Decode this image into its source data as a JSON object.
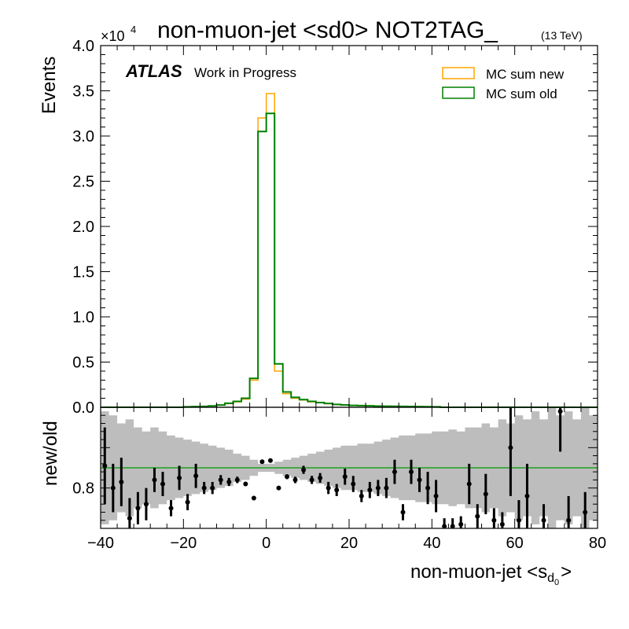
{
  "chart_data": [
    {
      "type": "line",
      "panel": "main",
      "title": "non-muon-jet <sd0> NOT2TAG_",
      "title_sub": "(13 TeV)",
      "experiment": "ATLAS",
      "experiment_note": "Work in Progress",
      "ylabel": "Events",
      "y_multiplier": "×10",
      "y_multiplier_exp": "4",
      "xlim": [
        -40,
        80
      ],
      "ylim": [
        0,
        40000
      ],
      "x_ticks": [
        "−40",
        "−20",
        "0",
        "20",
        "40",
        "60",
        "80"
      ],
      "y_ticks": [
        "0.0",
        "0.5",
        "1.0",
        "1.5",
        "2.0",
        "2.5",
        "3.0",
        "3.5",
        "4.0"
      ],
      "legend_position": "top-right",
      "bin_edges": [
        -20,
        -18,
        -16,
        -14,
        -12,
        -10,
        -8,
        -6,
        -4,
        -2,
        0,
        2,
        4,
        6,
        8,
        10,
        12,
        14,
        16,
        18,
        20,
        22,
        24,
        26,
        28,
        30,
        32,
        34,
        36,
        38,
        40,
        42
      ],
      "series": [
        {
          "name": "MC sum new",
          "color": "#ffa500",
          "values": [
            50,
            80,
            100,
            150,
            250,
            400,
            600,
            900,
            3000,
            32000,
            34700,
            4000,
            1500,
            1000,
            800,
            600,
            500,
            400,
            300,
            250,
            200,
            180,
            150,
            130,
            110,
            100,
            90,
            80,
            70,
            60,
            50
          ]
        },
        {
          "name": "MC sum old",
          "color": "#008000",
          "values": [
            50,
            80,
            100,
            150,
            250,
            450,
            650,
            1000,
            3200,
            30500,
            32500,
            4800,
            1700,
            1100,
            850,
            650,
            520,
            420,
            320,
            260,
            210,
            190,
            160,
            135,
            115,
            105,
            95,
            85,
            75,
            62,
            52
          ]
        }
      ]
    },
    {
      "type": "scatter",
      "panel": "ratio",
      "ylabel": "new/old",
      "xlabel": "non-muon-jet <s",
      "xlabel_sub": "d",
      "xlabel_subsub": "0",
      "xlabel_end": ">",
      "xlim": [
        -40,
        80
      ],
      "ylim": [
        0.7,
        1.0
      ],
      "y_ticks": [
        "0.8"
      ],
      "reference_line": 0.85,
      "reference_color": "#009a00",
      "band_color": "#bdbdbd",
      "band": {
        "x_edges": [
          -40,
          -38,
          -36,
          -34,
          -32,
          -30,
          -28,
          -26,
          -24,
          -22,
          -20,
          -18,
          -16,
          -14,
          -12,
          -10,
          -8,
          -6,
          -4,
          -2,
          0,
          2,
          4,
          6,
          8,
          10,
          12,
          14,
          16,
          18,
          20,
          22,
          24,
          26,
          28,
          30,
          32,
          34,
          36,
          38,
          40,
          42,
          44,
          46,
          48,
          50,
          52,
          54,
          56,
          58,
          60,
          62,
          64,
          66,
          68,
          70,
          72,
          74,
          76,
          78,
          80
        ],
        "halfwidth": [
          0.14,
          0.13,
          0.11,
          0.12,
          0.1,
          0.09,
          0.1,
          0.09,
          0.08,
          0.075,
          0.07,
          0.065,
          0.06,
          0.055,
          0.05,
          0.045,
          0.035,
          0.03,
          0.02,
          0.01,
          0.01,
          0.015,
          0.02,
          0.025,
          0.03,
          0.035,
          0.04,
          0.045,
          0.05,
          0.055,
          0.055,
          0.06,
          0.06,
          0.065,
          0.07,
          0.075,
          0.08,
          0.08,
          0.085,
          0.085,
          0.09,
          0.09,
          0.095,
          0.09,
          0.1,
          0.1,
          0.11,
          0.1,
          0.12,
          0.11,
          0.13,
          0.12,
          0.14,
          0.12,
          0.15,
          0.13,
          0.14,
          0.12,
          0.15,
          0.13
        ]
      },
      "points": [
        {
          "x": -39,
          "y": 0.855,
          "err": 0.095
        },
        {
          "x": -37,
          "y": 0.8,
          "err": 0.06
        },
        {
          "x": -35,
          "y": 0.815,
          "err": 0.06
        },
        {
          "x": -33,
          "y": 0.725,
          "err": 0.05
        },
        {
          "x": -31,
          "y": 0.75,
          "err": 0.04
        },
        {
          "x": -29,
          "y": 0.76,
          "err": 0.04
        },
        {
          "x": -27,
          "y": 0.82,
          "err": 0.03
        },
        {
          "x": -25,
          "y": 0.81,
          "err": 0.03
        },
        {
          "x": -23,
          "y": 0.75,
          "err": 0.02
        },
        {
          "x": -21,
          "y": 0.825,
          "err": 0.03
        },
        {
          "x": -19,
          "y": 0.765,
          "err": 0.02
        },
        {
          "x": -17,
          "y": 0.83,
          "err": 0.03
        },
        {
          "x": -15,
          "y": 0.8,
          "err": 0.015
        },
        {
          "x": -13,
          "y": 0.8,
          "err": 0.015
        },
        {
          "x": -11,
          "y": 0.82,
          "err": 0.012
        },
        {
          "x": -9,
          "y": 0.815,
          "err": 0.01
        },
        {
          "x": -7,
          "y": 0.82,
          "err": 0.008
        },
        {
          "x": -5,
          "y": 0.81,
          "err": 0.005
        },
        {
          "x": -3,
          "y": 0.775,
          "err": 0.005
        },
        {
          "x": -1,
          "y": 0.865,
          "err": 0.002
        },
        {
          "x": 1,
          "y": 0.868,
          "err": 0.002
        },
        {
          "x": 3,
          "y": 0.8,
          "err": 0.004
        },
        {
          "x": 5,
          "y": 0.828,
          "err": 0.006
        },
        {
          "x": 7,
          "y": 0.82,
          "err": 0.008
        },
        {
          "x": 9,
          "y": 0.845,
          "err": 0.01
        },
        {
          "x": 11,
          "y": 0.82,
          "err": 0.01
        },
        {
          "x": 13,
          "y": 0.825,
          "err": 0.012
        },
        {
          "x": 15,
          "y": 0.8,
          "err": 0.015
        },
        {
          "x": 17,
          "y": 0.795,
          "err": 0.015
        },
        {
          "x": 19,
          "y": 0.828,
          "err": 0.02
        },
        {
          "x": 21,
          "y": 0.81,
          "err": 0.02
        },
        {
          "x": 23,
          "y": 0.78,
          "err": 0.015
        },
        {
          "x": 25,
          "y": 0.795,
          "err": 0.02
        },
        {
          "x": 27,
          "y": 0.8,
          "err": 0.02
        },
        {
          "x": 29,
          "y": 0.8,
          "err": 0.025
        },
        {
          "x": 31,
          "y": 0.84,
          "err": 0.03
        },
        {
          "x": 33,
          "y": 0.74,
          "err": 0.02
        },
        {
          "x": 35,
          "y": 0.84,
          "err": 0.03
        },
        {
          "x": 37,
          "y": 0.82,
          "err": 0.03
        },
        {
          "x": 39,
          "y": 0.8,
          "err": 0.04
        },
        {
          "x": 41,
          "y": 0.78,
          "err": 0.04
        },
        {
          "x": 43,
          "y": 0.705,
          "err": 0.02
        },
        {
          "x": 45,
          "y": 0.705,
          "err": 0.02
        },
        {
          "x": 47,
          "y": 0.71,
          "err": 0.02
        },
        {
          "x": 49,
          "y": 0.81,
          "err": 0.05
        },
        {
          "x": 51,
          "y": 0.73,
          "err": 0.03
        },
        {
          "x": 53,
          "y": 0.785,
          "err": 0.05
        },
        {
          "x": 55,
          "y": 0.72,
          "err": 0.03
        },
        {
          "x": 57,
          "y": 0.71,
          "err": 0.03
        },
        {
          "x": 59,
          "y": 0.9,
          "err": 0.12
        },
        {
          "x": 61,
          "y": 0.72,
          "err": 0.05
        },
        {
          "x": 63,
          "y": 0.78,
          "err": 0.08
        },
        {
          "x": 67,
          "y": 0.72,
          "err": 0.04
        },
        {
          "x": 71,
          "y": 0.99,
          "err": 0.1
        },
        {
          "x": 73,
          "y": 0.72,
          "err": 0.06
        },
        {
          "x": 77,
          "y": 0.74,
          "err": 0.05
        }
      ]
    }
  ]
}
